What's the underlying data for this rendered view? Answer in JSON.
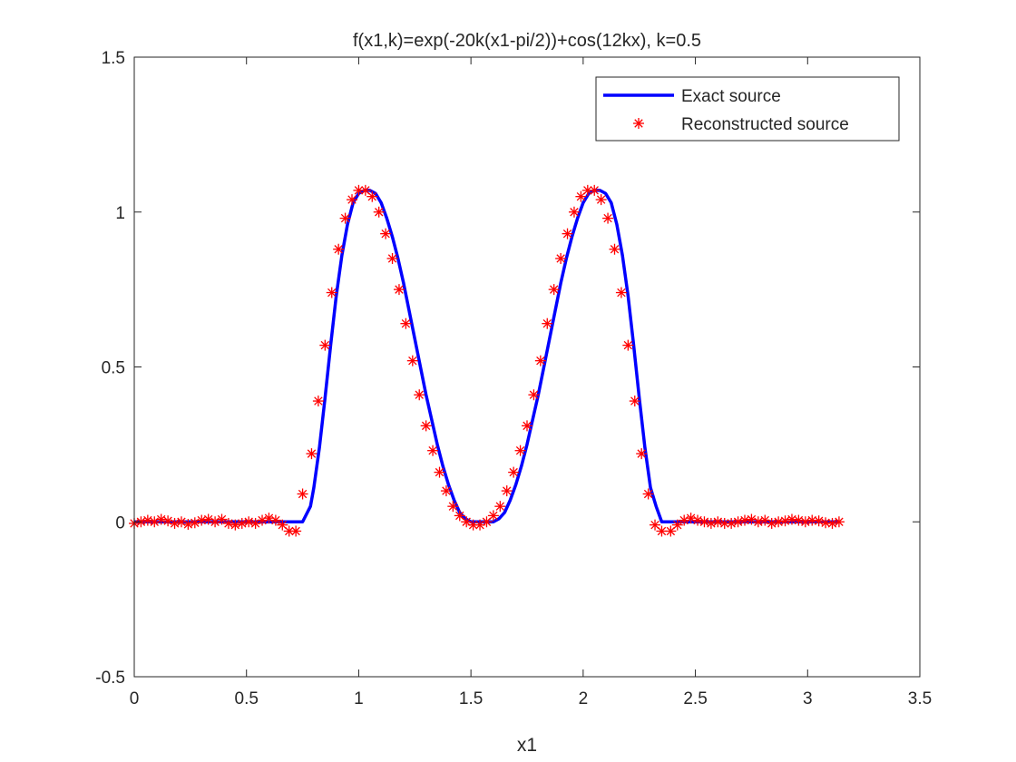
{
  "chart_data": {
    "type": "line",
    "title": "f(x1,k)=exp(-20k(x1-pi/2))+cos(12kx),   k=0.5",
    "xlabel": "x1",
    "ylabel": "",
    "xlim": [
      0,
      3.5
    ],
    "ylim": [
      -0.5,
      1.5
    ],
    "xticks": [
      {
        "value": 0,
        "label": "0"
      },
      {
        "value": 0.5,
        "label": "0.5"
      },
      {
        "value": 1,
        "label": "1"
      },
      {
        "value": 1.5,
        "label": "1.5"
      },
      {
        "value": 2,
        "label": "2"
      },
      {
        "value": 2.5,
        "label": "2.5"
      },
      {
        "value": 3,
        "label": "3"
      },
      {
        "value": 3.5,
        "label": "3.5"
      }
    ],
    "yticks": [
      {
        "value": -0.5,
        "label": "-0.5"
      },
      {
        "value": 0,
        "label": "0"
      },
      {
        "value": 0.5,
        "label": "0.5"
      },
      {
        "value": 1,
        "label": "1"
      },
      {
        "value": 1.5,
        "label": "1.5"
      }
    ],
    "grid": false,
    "legend_position": "top-right",
    "series": [
      {
        "name": "Exact source",
        "style": "line",
        "color": "#0000ff",
        "x": [
          0,
          0.05,
          0.1,
          0.15,
          0.2,
          0.25,
          0.3,
          0.35,
          0.4,
          0.45,
          0.5,
          0.55,
          0.6,
          0.65,
          0.7,
          0.75,
          0.785,
          0.8,
          0.825,
          0.85,
          0.875,
          0.9,
          0.925,
          0.95,
          0.975,
          1.0,
          1.025,
          1.05,
          1.075,
          1.1,
          1.125,
          1.15,
          1.175,
          1.2,
          1.225,
          1.25,
          1.275,
          1.3,
          1.325,
          1.35,
          1.375,
          1.4,
          1.425,
          1.45,
          1.475,
          1.5,
          1.525,
          1.55,
          1.575,
          1.6,
          1.625,
          1.65,
          1.675,
          1.7,
          1.725,
          1.75,
          1.775,
          1.8,
          1.825,
          1.85,
          1.875,
          1.9,
          1.925,
          1.95,
          1.975,
          2.0,
          2.025,
          2.05,
          2.075,
          2.1,
          2.125,
          2.15,
          2.175,
          2.2,
          2.225,
          2.25,
          2.275,
          2.3,
          2.325,
          2.35,
          2.36,
          2.4,
          2.5,
          2.6,
          2.7,
          2.8,
          2.9,
          3.0,
          3.1,
          3.14
        ],
        "y": [
          0,
          0,
          0,
          0,
          0,
          0,
          0,
          0,
          0,
          0,
          0,
          0,
          0,
          0,
          0,
          0,
          0.05,
          0.11,
          0.24,
          0.4,
          0.57,
          0.73,
          0.86,
          0.96,
          1.03,
          1.06,
          1.07,
          1.07,
          1.06,
          1.03,
          0.98,
          0.92,
          0.85,
          0.77,
          0.68,
          0.59,
          0.5,
          0.41,
          0.33,
          0.25,
          0.18,
          0.12,
          0.07,
          0.03,
          0.01,
          0.0,
          0.0,
          0.0,
          0.0,
          0.0,
          0.01,
          0.03,
          0.07,
          0.12,
          0.18,
          0.25,
          0.33,
          0.41,
          0.5,
          0.59,
          0.68,
          0.77,
          0.85,
          0.92,
          0.98,
          1.03,
          1.06,
          1.07,
          1.07,
          1.06,
          1.03,
          0.96,
          0.86,
          0.73,
          0.57,
          0.4,
          0.24,
          0.11,
          0.05,
          0,
          0,
          0,
          0,
          0,
          0,
          0,
          0,
          0,
          0,
          0
        ]
      },
      {
        "name": "Reconstructed source",
        "style": "markers",
        "marker": "asterisk",
        "color": "#ff0000",
        "x": [
          0.0,
          0.03,
          0.06,
          0.09,
          0.12,
          0.15,
          0.18,
          0.21,
          0.24,
          0.27,
          0.3,
          0.33,
          0.36,
          0.39,
          0.42,
          0.45,
          0.48,
          0.51,
          0.54,
          0.57,
          0.6,
          0.63,
          0.66,
          0.69,
          0.72,
          0.75,
          0.79,
          0.82,
          0.85,
          0.88,
          0.91,
          0.94,
          0.97,
          1.0,
          1.03,
          1.06,
          1.09,
          1.12,
          1.15,
          1.18,
          1.21,
          1.24,
          1.27,
          1.3,
          1.33,
          1.36,
          1.39,
          1.42,
          1.45,
          1.48,
          1.51,
          1.54,
          1.57,
          1.6,
          1.63,
          1.66,
          1.69,
          1.72,
          1.75,
          1.78,
          1.81,
          1.84,
          1.87,
          1.9,
          1.93,
          1.96,
          1.99,
          2.02,
          2.05,
          2.08,
          2.11,
          2.14,
          2.17,
          2.2,
          2.23,
          2.26,
          2.29,
          2.32,
          2.35,
          2.39,
          2.42,
          2.45,
          2.48,
          2.51,
          2.54,
          2.57,
          2.6,
          2.63,
          2.66,
          2.69,
          2.72,
          2.75,
          2.78,
          2.81,
          2.84,
          2.87,
          2.9,
          2.93,
          2.96,
          2.99,
          3.02,
          3.05,
          3.08,
          3.11,
          3.14
        ],
        "y": [
          -0.005,
          0.0,
          0.005,
          0.0,
          0.008,
          0.003,
          -0.005,
          0.0,
          -0.008,
          -0.003,
          0.005,
          0.008,
          0.0,
          0.008,
          -0.005,
          -0.01,
          -0.005,
          0.0,
          -0.005,
          0.005,
          0.012,
          0.005,
          -0.01,
          -0.03,
          -0.03,
          0.09,
          0.22,
          0.39,
          0.57,
          0.74,
          0.88,
          0.98,
          1.04,
          1.07,
          1.07,
          1.05,
          1.0,
          0.93,
          0.85,
          0.75,
          0.64,
          0.52,
          0.41,
          0.31,
          0.23,
          0.16,
          0.1,
          0.05,
          0.02,
          0.0,
          -0.01,
          -0.01,
          0.0,
          0.02,
          0.05,
          0.1,
          0.16,
          0.23,
          0.31,
          0.41,
          0.52,
          0.64,
          0.75,
          0.85,
          0.93,
          1.0,
          1.05,
          1.07,
          1.07,
          1.04,
          0.98,
          0.88,
          0.74,
          0.57,
          0.39,
          0.22,
          0.09,
          -0.01,
          -0.03,
          -0.03,
          -0.01,
          0.005,
          0.012,
          0.005,
          0.0,
          -0.005,
          0.0,
          -0.005,
          -0.005,
          0.0,
          0.005,
          0.008,
          0.0,
          0.005,
          -0.005,
          0.0,
          0.003,
          0.008,
          0.005,
          0.0,
          0.005,
          0.003,
          -0.003,
          -0.005,
          0.0
        ]
      }
    ]
  }
}
